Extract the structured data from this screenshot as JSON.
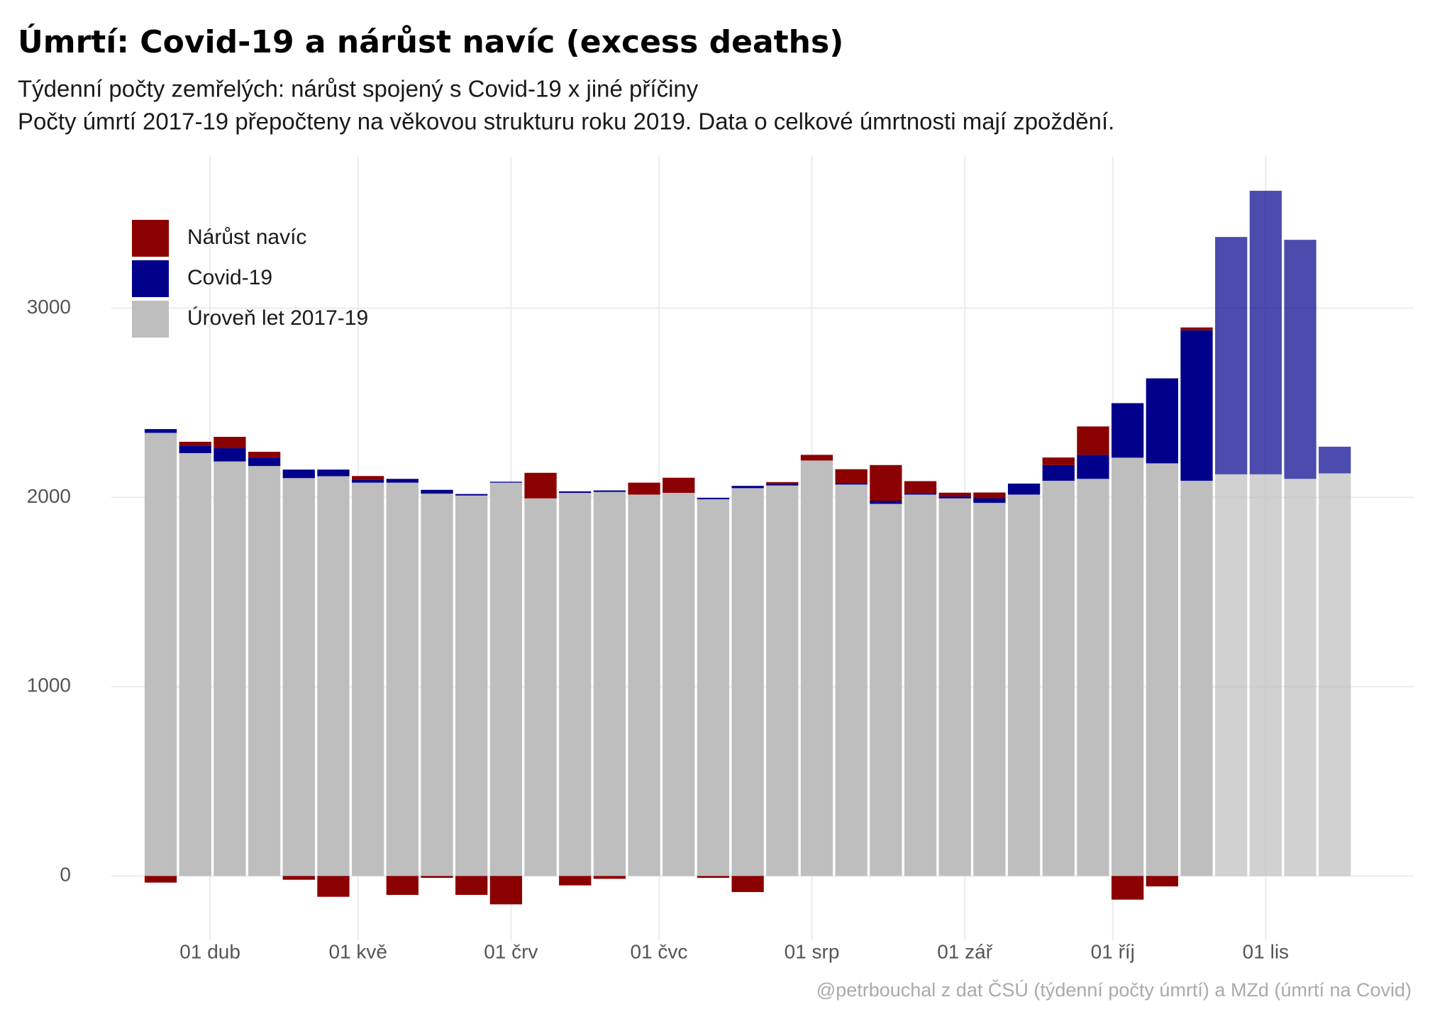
{
  "chart_data": {
    "type": "stacked-bar",
    "title": "Úmrtí: Covid-19 a nárůst navíc (excess deaths)",
    "subtitle": [
      "Týdenní počty zemřelých: nárůst spojený s Covid-19 x jiné příčiny",
      "Počty úmrtí 2017-19 přepočteny na věkovou strukturu roku 2019. Data o celkové úmrtnosti mají zpoždění."
    ],
    "caption": "@petrbouchal z dat ČSÚ (týdenní počty úmrtí) a MZd (úmrtí na Covid)",
    "x": [
      "03-22",
      "03-29",
      "04-05",
      "04-12",
      "04-19",
      "04-26",
      "05-03",
      "05-10",
      "05-17",
      "05-24",
      "05-31",
      "06-07",
      "06-14",
      "06-21",
      "06-28",
      "07-05",
      "07-12",
      "07-19",
      "07-26",
      "08-02",
      "08-09",
      "08-16",
      "08-23",
      "08-30",
      "09-06",
      "09-13",
      "09-20",
      "09-27",
      "10-04",
      "10-11",
      "10-18",
      "10-25",
      "11-01",
      "11-08",
      "11-15"
    ],
    "series": [
      {
        "name": "Nárůst navíc",
        "color": "#8b0000",
        "values": [
          -35,
          20,
          60,
          30,
          -20,
          -110,
          20,
          -100,
          -10,
          -100,
          -150,
          135,
          -50,
          -15,
          63,
          80,
          -10,
          -85,
          10,
          30,
          73,
          190,
          63,
          20,
          30,
          0,
          40,
          150,
          -125,
          -55,
          15,
          null,
          null,
          null,
          null
        ]
      },
      {
        "name": "Covid-19",
        "color": "#00008b",
        "values": [
          20,
          40,
          70,
          45,
          45,
          35,
          15,
          20,
          20,
          8,
          5,
          0,
          8,
          8,
          0,
          0,
          8,
          12,
          8,
          0,
          8,
          15,
          8,
          10,
          25,
          58,
          83,
          127,
          288,
          449,
          795,
          1254,
          1498,
          1263,
          141
        ]
      },
      {
        "name": "Úroveň let 2017-19",
        "color": "#bebebe",
        "values": [
          2341,
          2234,
          2190,
          2166,
          2102,
          2112,
          2078,
          2078,
          2020,
          2010,
          2078,
          1995,
          2024,
          2029,
          2015,
          2024,
          1990,
          2049,
          2063,
          2195,
          2068,
          1966,
          2015,
          1995,
          1971,
          2015,
          2088,
          2098,
          2210,
          2180,
          2088,
          2122,
          2122,
          2098,
          2127
        ]
      }
    ],
    "xlim": [
      "03-12",
      "12-01"
    ],
    "xticks": [
      {
        "value": "04-01",
        "label": "01 dub"
      },
      {
        "value": "05-01",
        "label": "01 kvě"
      },
      {
        "value": "06-01",
        "label": "01 črv"
      },
      {
        "value": "07-01",
        "label": "01 čvc"
      },
      {
        "value": "08-01",
        "label": "01 srp"
      },
      {
        "value": "09-01",
        "label": "01 zář"
      },
      {
        "value": "10-01",
        "label": "01 říj"
      },
      {
        "value": "11-01",
        "label": "01 lis"
      }
    ],
    "ylim": [
      -340,
      3800
    ],
    "yticks": [
      0,
      1000,
      2000,
      3000
    ],
    "grid": true,
    "legend": "top-left"
  }
}
